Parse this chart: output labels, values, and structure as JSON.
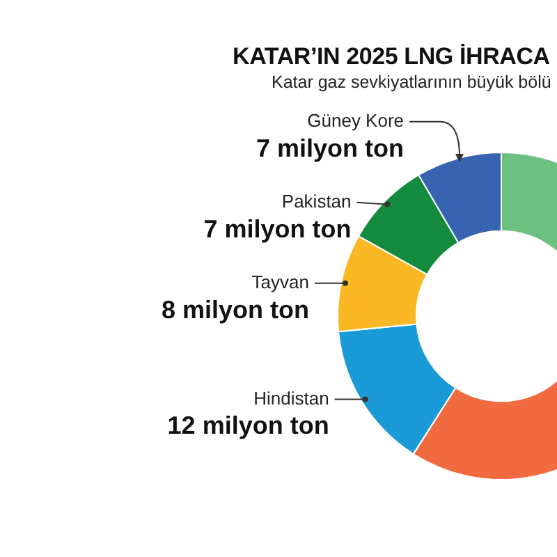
{
  "chart_data": {
    "type": "donut",
    "title": "KATAR’IN 2025 LNG İHRACA",
    "subtitle": "Katar gaz sevkiyatlarının büyük bölü",
    "categories": [
      null,
      null,
      "Hindistan",
      "Tayvan",
      "Pakistan",
      "Güney Kore"
    ],
    "values": [
      31,
      18,
      12,
      8,
      7,
      7
    ],
    "colors": [
      "#6cc080",
      "#f26a3f",
      "#1a9bd7",
      "#f9b824",
      "#138a3e",
      "#3763b0"
    ],
    "value_labels": [
      null,
      null,
      "12 milyon ton",
      "8 milyon ton",
      "7 milyon ton",
      "7 milyon ton"
    ]
  }
}
